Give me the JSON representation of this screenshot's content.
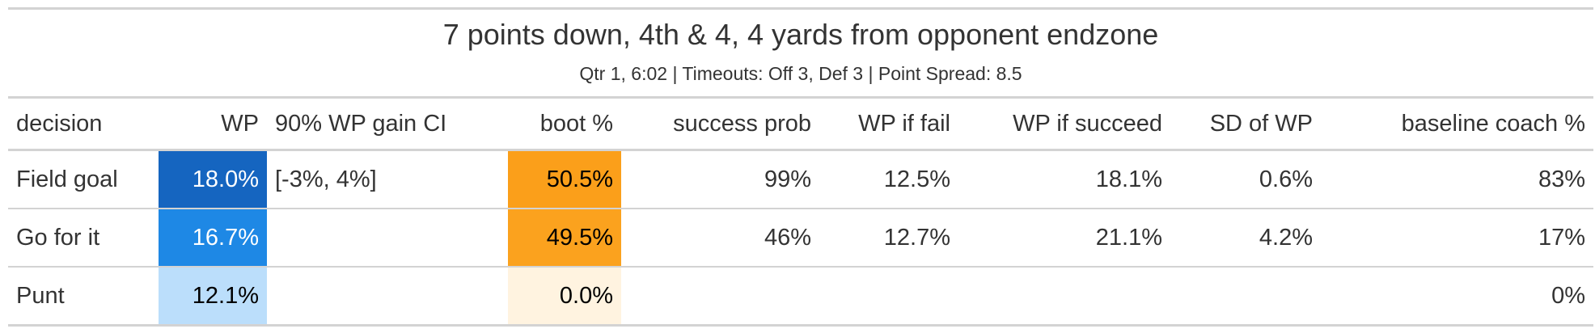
{
  "title": "7 points down, 4th & 4, 4 yards from opponent endzone",
  "subtitle": "Qtr 1, 6:02 | Timeouts: Off 3, Def 3 | Point Spread: 8.5",
  "columns": [
    "decision",
    "WP",
    "90% WP gain CI",
    "boot %",
    "success prob",
    "WP if fail",
    "WP if succeed",
    "SD of WP",
    "baseline coach %"
  ],
  "rows": [
    {
      "decision": "Field goal",
      "wp": "18.0%",
      "ci": "[-3%, 4%]",
      "boot": "50.5%",
      "success": "99%",
      "wp_fail": "12.5%",
      "wp_succeed": "18.1%",
      "sd": "0.6%",
      "baseline": "83%",
      "wp_color": "#1565c0",
      "boot_color": "#fb9f1a"
    },
    {
      "decision": "Go for it",
      "wp": "16.7%",
      "ci": "",
      "boot": "49.5%",
      "success": "46%",
      "wp_fail": "12.7%",
      "wp_succeed": "21.1%",
      "sd": "4.2%",
      "baseline": "17%",
      "wp_color": "#1e88e5",
      "boot_color": "#fba21e"
    },
    {
      "decision": "Punt",
      "wp": "12.1%",
      "ci": "",
      "boot": "0.0%",
      "success": "",
      "wp_fail": "",
      "wp_succeed": "",
      "sd": "",
      "baseline": "0%",
      "wp_color": "#bbdefb",
      "boot_color": "#fff3e0"
    }
  ]
}
